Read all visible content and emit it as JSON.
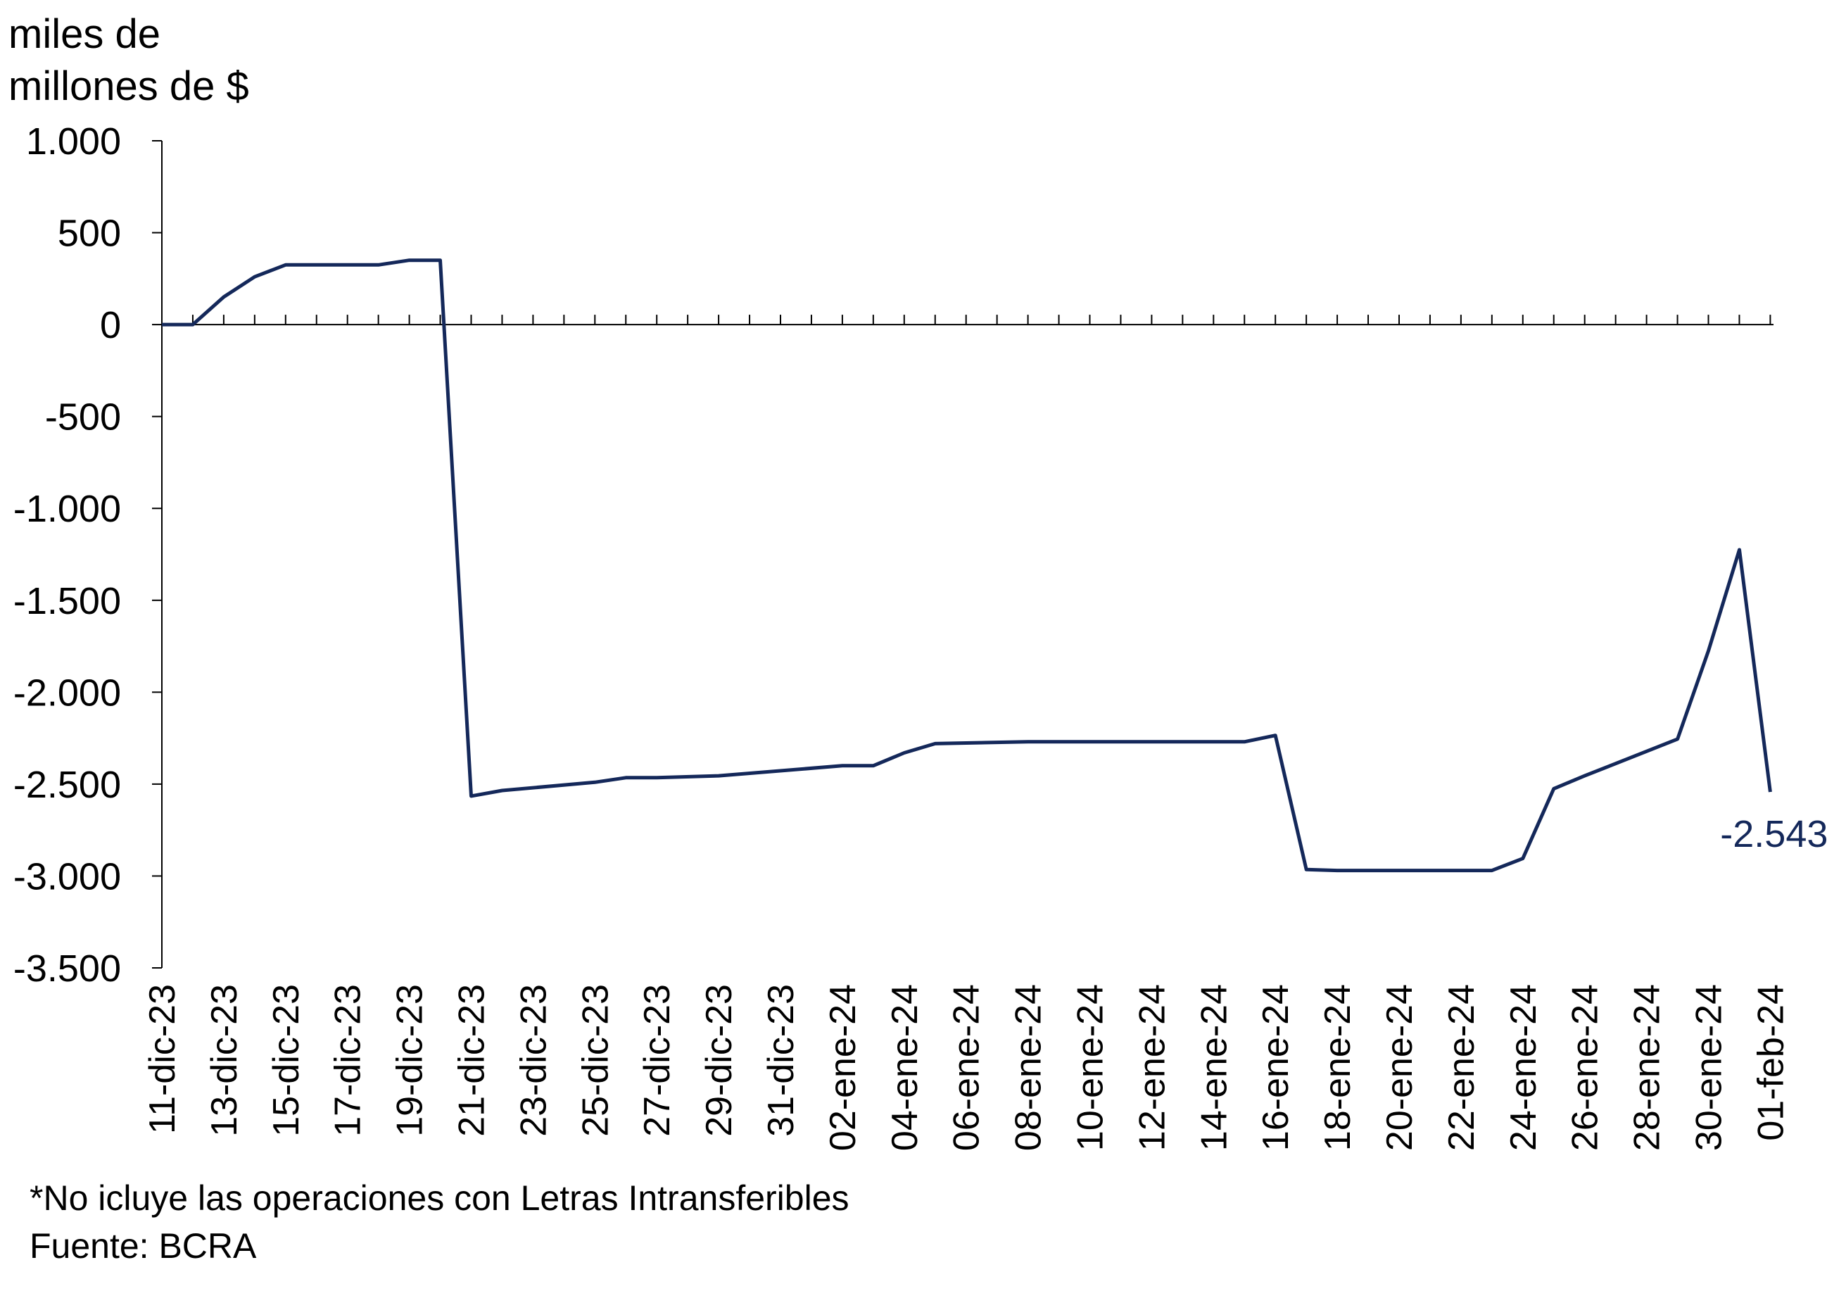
{
  "chart_data": {
    "type": "line",
    "ylabel_lines": [
      "miles de",
      "millones de $"
    ],
    "ylim": [
      -3500,
      1000
    ],
    "yticks": [
      1000,
      500,
      0,
      -500,
      -1000,
      -1500,
      -2000,
      -2500,
      -3000,
      -3500
    ],
    "ytick_labels": [
      "1.000",
      "500",
      "0",
      "-500",
      "-1.000",
      "-1.500",
      "-2.000",
      "-2.500",
      "-3.000",
      "-3.500"
    ],
    "xtick_labels": [
      "11-dic-23",
      "13-dic-23",
      "15-dic-23",
      "17-dic-23",
      "19-dic-23",
      "21-dic-23",
      "23-dic-23",
      "25-dic-23",
      "27-dic-23",
      "29-dic-23",
      "31-dic-23",
      "02-ene-24",
      "04-ene-24",
      "06-ene-24",
      "08-ene-24",
      "10-ene-24",
      "12-ene-24",
      "14-ene-24",
      "16-ene-24",
      "18-ene-24",
      "20-ene-24",
      "22-ene-24",
      "24-ene-24",
      "26-ene-24",
      "28-ene-24",
      "30-ene-24",
      "01-feb-24"
    ],
    "series": [
      {
        "color": "#14285a",
        "points": [
          {
            "x": "11-dic-23",
            "y": 0
          },
          {
            "x": "12-dic-23",
            "y": 0
          },
          {
            "x": "13-dic-23",
            "y": 150
          },
          {
            "x": "14-dic-23",
            "y": 260
          },
          {
            "x": "15-dic-23",
            "y": 325
          },
          {
            "x": "16-dic-23",
            "y": 325
          },
          {
            "x": "17-dic-23",
            "y": 325
          },
          {
            "x": "18-dic-23",
            "y": 325
          },
          {
            "x": "19-dic-23",
            "y": 350
          },
          {
            "x": "20-dic-23",
            "y": 350
          },
          {
            "x": "21-dic-23",
            "y": -2565
          },
          {
            "x": "22-dic-23",
            "y": -2535
          },
          {
            "x": "25-dic-23",
            "y": -2490
          },
          {
            "x": "26-dic-23",
            "y": -2465
          },
          {
            "x": "27-dic-23",
            "y": -2465
          },
          {
            "x": "29-dic-23",
            "y": -2455
          },
          {
            "x": "02-ene-24",
            "y": -2400
          },
          {
            "x": "03-ene-24",
            "y": -2400
          },
          {
            "x": "04-ene-24",
            "y": -2330
          },
          {
            "x": "05-ene-24",
            "y": -2280
          },
          {
            "x": "08-ene-24",
            "y": -2270
          },
          {
            "x": "15-ene-24",
            "y": -2270
          },
          {
            "x": "16-ene-24",
            "y": -2235
          },
          {
            "x": "17-ene-24",
            "y": -2965
          },
          {
            "x": "18-ene-24",
            "y": -2970
          },
          {
            "x": "23-ene-24",
            "y": -2970
          },
          {
            "x": "24-ene-24",
            "y": -2905
          },
          {
            "x": "25-ene-24",
            "y": -2525
          },
          {
            "x": "26-ene-24",
            "y": -2455
          },
          {
            "x": "29-ene-24",
            "y": -2255
          },
          {
            "x": "30-ene-24",
            "y": -1775
          },
          {
            "x": "31-ene-24",
            "y": -1225
          },
          {
            "x": "01-feb-24",
            "y": -2543
          }
        ]
      }
    ],
    "annotations": [
      {
        "text": "-2.543",
        "x": "01-feb-24",
        "y": -2543
      }
    ],
    "footnote": "*No icluye las operaciones con Letras Intransferibles",
    "source": "Fuente: BCRA"
  }
}
